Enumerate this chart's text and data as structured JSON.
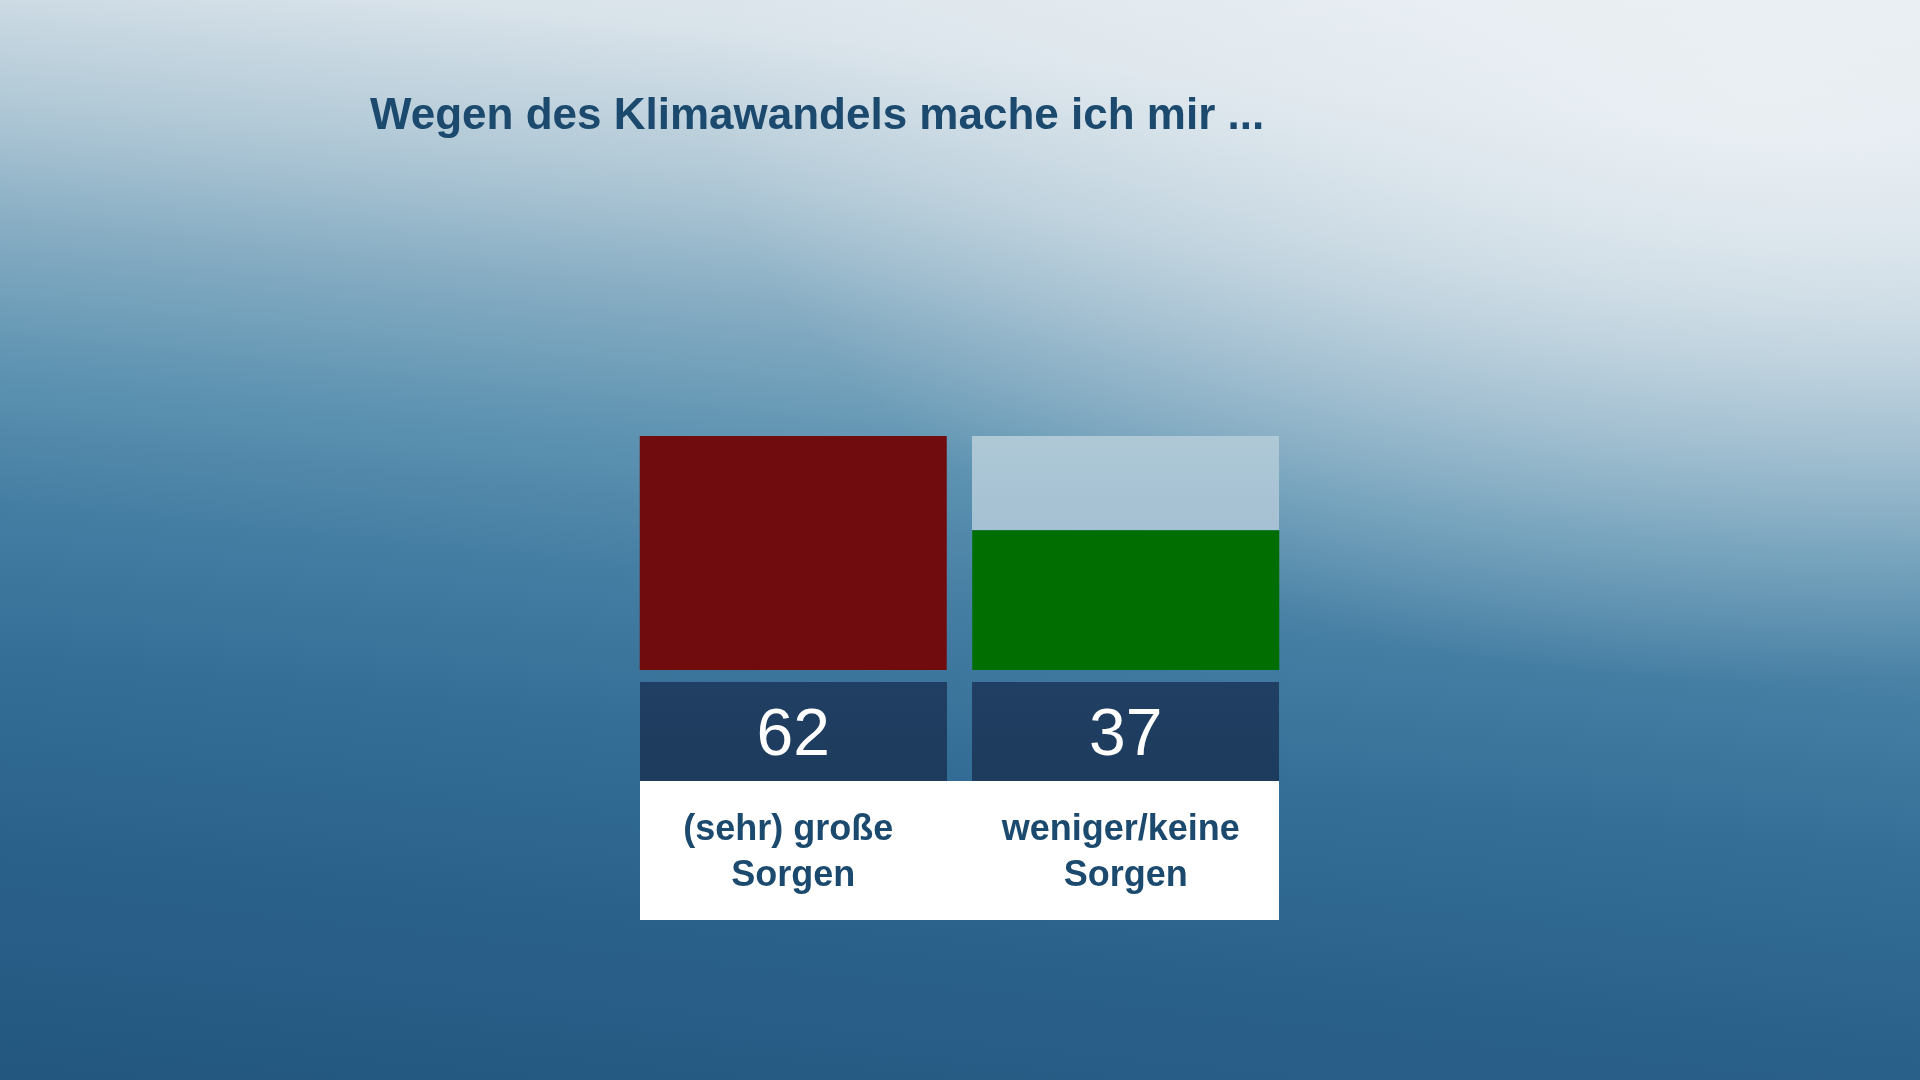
{
  "chart_data": {
    "type": "bar",
    "title": "Wegen des Klimawandels mache ich mir ...",
    "categories": [
      "(sehr) große Sorgen",
      "weniger/keine Sorgen"
    ],
    "values": [
      62,
      37
    ],
    "colors": [
      "#700c0d",
      "#006e00"
    ],
    "data_labels": true,
    "tick_labels": "x"
  }
}
